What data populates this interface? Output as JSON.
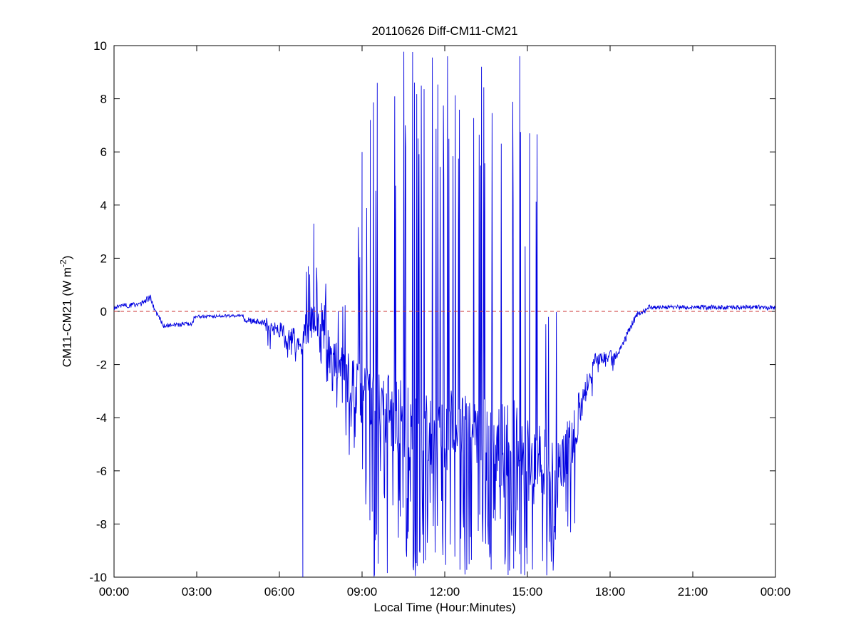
{
  "figure": {
    "title": "20110626 Diff-CM11-CM21",
    "xlabel": "Local Time (Hour:Minutes)",
    "ylabel_pre": "CM11-CM21 (W m",
    "ylabel_sup": "-2",
    "ylabel_post": ")",
    "background": "#ffffff"
  },
  "chart_data": {
    "type": "line",
    "title": "20110626 Diff-CM11-CM21",
    "xlabel": "Local Time (Hour:Minutes)",
    "ylabel": "CM11-CM21 (W m^-2)",
    "xlim": [
      0,
      24
    ],
    "ylim": [
      -10,
      10
    ],
    "grid": false,
    "legend": null,
    "line_color": "#0000e0",
    "ref_line": {
      "y": 0,
      "color": "#cc3333",
      "style": "dashed"
    },
    "xticks": [
      {
        "v": 0,
        "label": "00:00"
      },
      {
        "v": 3,
        "label": "03:00"
      },
      {
        "v": 6,
        "label": "06:00"
      },
      {
        "v": 9,
        "label": "09:00"
      },
      {
        "v": 12,
        "label": "12:00"
      },
      {
        "v": 15,
        "label": "15:00"
      },
      {
        "v": 18,
        "label": "18:00"
      },
      {
        "v": 21,
        "label": "21:00"
      },
      {
        "v": 24,
        "label": "00:00"
      }
    ],
    "yticks": [
      {
        "v": -10,
        "label": "-10"
      },
      {
        "v": -8,
        "label": "-8"
      },
      {
        "v": -6,
        "label": "-6"
      },
      {
        "v": -4,
        "label": "-4"
      },
      {
        "v": -2,
        "label": "-2"
      },
      {
        "v": 0,
        "label": "0"
      },
      {
        "v": 2,
        "label": "2"
      },
      {
        "v": 4,
        "label": "4"
      },
      {
        "v": 6,
        "label": "6"
      },
      {
        "v": 8,
        "label": "8"
      },
      {
        "v": 10,
        "label": "10"
      }
    ],
    "seed": 20110626,
    "sample_hours": 0.0166667,
    "segments": [
      {
        "t0": 0.0,
        "t1": 1.0,
        "b0": 0.15,
        "b1": 0.3,
        "n": 0.1
      },
      {
        "t0": 1.0,
        "t1": 1.35,
        "b0": 0.3,
        "b1": 0.55,
        "n": 0.12
      },
      {
        "t0": 1.35,
        "t1": 1.75,
        "b0": 0.4,
        "b1": -0.5,
        "n": 0.12
      },
      {
        "t0": 1.75,
        "t1": 2.9,
        "b0": -0.55,
        "b1": -0.45,
        "n": 0.08
      },
      {
        "t0": 2.9,
        "t1": 4.7,
        "b0": -0.2,
        "b1": -0.15,
        "n": 0.06
      },
      {
        "t0": 4.7,
        "t1": 5.5,
        "b0": -0.3,
        "b1": -0.45,
        "n": 0.12
      },
      {
        "t0": 5.5,
        "t1": 6.2,
        "b0": -0.45,
        "b1": -0.8,
        "n": 0.3,
        "dn": 0.08,
        "d0": -1.6,
        "d1": -1.1
      },
      {
        "t0": 6.2,
        "t1": 6.9,
        "b0": -1.0,
        "b1": -1.2,
        "n": 0.5,
        "dn": 0.12,
        "d0": -2.2,
        "d1": -1.5
      },
      {
        "t0": 6.9,
        "t1": 7.7,
        "b0": -0.6,
        "b1": -0.3,
        "n": 0.7,
        "up": 0.18,
        "u0": 0.8,
        "u1": 1.8,
        "dn": 0.1,
        "d0": -2.2,
        "d1": -1.2
      },
      {
        "t0": 7.7,
        "t1": 8.4,
        "b0": -1.4,
        "b1": -2.2,
        "n": 0.8,
        "up": 0.1,
        "u0": -0.3,
        "u1": 0.8,
        "dn": 0.18,
        "d0": -3.8,
        "d1": -2.5
      },
      {
        "t0": 8.4,
        "t1": 9.1,
        "b0": -2.4,
        "b1": -3.2,
        "n": 1.1,
        "up": 0.08,
        "u0": 1.5,
        "u1": 4.5,
        "dn": 0.2,
        "d0": -6.0,
        "d1": -4.0
      },
      {
        "t0": 9.1,
        "t1": 10.3,
        "b0": -3.2,
        "b1": -4.0,
        "n": 1.4,
        "up": 0.12,
        "u0": 3.0,
        "u1": 9.0,
        "dn": 0.22,
        "d0": -10.0,
        "d1": -6.0
      },
      {
        "t0": 10.3,
        "t1": 11.6,
        "b0": -4.2,
        "b1": -4.6,
        "n": 1.7,
        "up": 0.22,
        "u0": 5.0,
        "u1": 10.0,
        "dn": 0.25,
        "d0": -10.0,
        "d1": -7.0
      },
      {
        "t0": 11.6,
        "t1": 13.6,
        "b0": -4.4,
        "b1": -4.8,
        "n": 1.6,
        "up": 0.18,
        "u0": 4.0,
        "u1": 10.0,
        "dn": 0.25,
        "d0": -10.0,
        "d1": -7.0
      },
      {
        "t0": 13.6,
        "t1": 14.6,
        "b0": -5.0,
        "b1": -5.0,
        "n": 1.7,
        "up": 0.14,
        "u0": 3.0,
        "u1": 10.0,
        "dn": 0.28,
        "d0": -10.0,
        "d1": -7.0
      },
      {
        "t0": 14.6,
        "t1": 15.4,
        "b0": -5.0,
        "b1": -5.5,
        "n": 1.4,
        "up": 0.1,
        "u0": 2.0,
        "u1": 7.0,
        "dn": 0.26,
        "d0": -10.0,
        "d1": -7.0
      },
      {
        "t0": 15.4,
        "t1": 16.1,
        "b0": -5.5,
        "b1": -6.0,
        "n": 1.3,
        "up": 0.04,
        "u0": -1.0,
        "u1": 0.0,
        "dn": 0.3,
        "d0": -10.0,
        "d1": -8.0
      },
      {
        "t0": 16.1,
        "t1": 16.9,
        "b0": -6.0,
        "b1": -4.0,
        "n": 1.1,
        "dn": 0.22,
        "d0": -8.5,
        "d1": -7.0
      },
      {
        "t0": 16.9,
        "t1": 17.4,
        "b0": -3.8,
        "b1": -1.9,
        "n": 0.5,
        "dn": 0.12,
        "d0": -3.5,
        "d1": -2.8
      },
      {
        "t0": 17.4,
        "t1": 18.35,
        "b0": -1.8,
        "b1": -1.6,
        "n": 0.25,
        "dn": 0.06,
        "d0": -2.3,
        "d1": -2.0
      },
      {
        "t0": 18.35,
        "t1": 18.9,
        "b0": -1.5,
        "b1": -0.25,
        "n": 0.15
      },
      {
        "t0": 18.9,
        "t1": 19.4,
        "b0": -0.15,
        "b1": 0.1,
        "n": 0.1
      },
      {
        "t0": 19.4,
        "t1": 24.01,
        "b0": 0.15,
        "b1": 0.15,
        "n": 0.09
      }
    ],
    "fixed_spikes": [
      {
        "t": 6.85,
        "v": -10
      },
      {
        "t": 7.05,
        "v": 1.7
      },
      {
        "t": 7.25,
        "v": 3.3
      },
      {
        "t": 9.0,
        "v": 6.0
      },
      {
        "t": 9.3,
        "v": 7.2
      },
      {
        "t": 9.55,
        "v": 8.6
      },
      {
        "t": 14.72,
        "v": 9.6
      },
      {
        "t": 15.08,
        "v": 6.7
      }
    ]
  }
}
